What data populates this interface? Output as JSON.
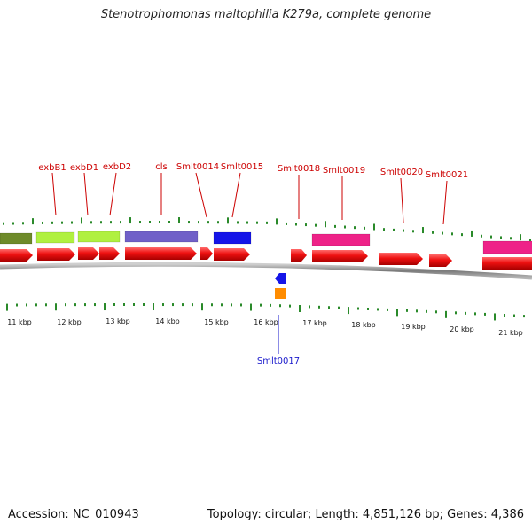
{
  "title": "Stenotrophomonas maltophilia K279a, complete genome",
  "footer": {
    "accession": "Accession: NC_010943",
    "stats": "Topology: circular; Length: 4,851,126 bp; Genes: 4,386"
  },
  "colors": {
    "cds": "#ee1111",
    "label_top": "#cc0000",
    "label_bottom": "#1a1acc",
    "tick": "#2a8a2a",
    "backbone": "#888888"
  },
  "axis_labels": [
    "11 kbp",
    "12 kbp",
    "13 kbp",
    "14 kbp",
    "15 kbp",
    "16 kbp",
    "17 kbp",
    "18 kbp",
    "19 kbp",
    "20 kbp",
    "21 kbp"
  ],
  "gene_labels_top": [
    "exbB1",
    "exbD1",
    "exbD2",
    "cls",
    "Smlt0014",
    "Smlt0015",
    "Smlt0018",
    "Smlt0019",
    "Smlt0020",
    "Smlt0021"
  ],
  "gene_labels_bottom": [
    "Smlt0017"
  ],
  "feature_colors": [
    "#6e8a2a",
    "#b0f040",
    "#b0f040",
    "#7060c8",
    "#1515e8",
    "#ee2288",
    "#ee2288"
  ]
}
